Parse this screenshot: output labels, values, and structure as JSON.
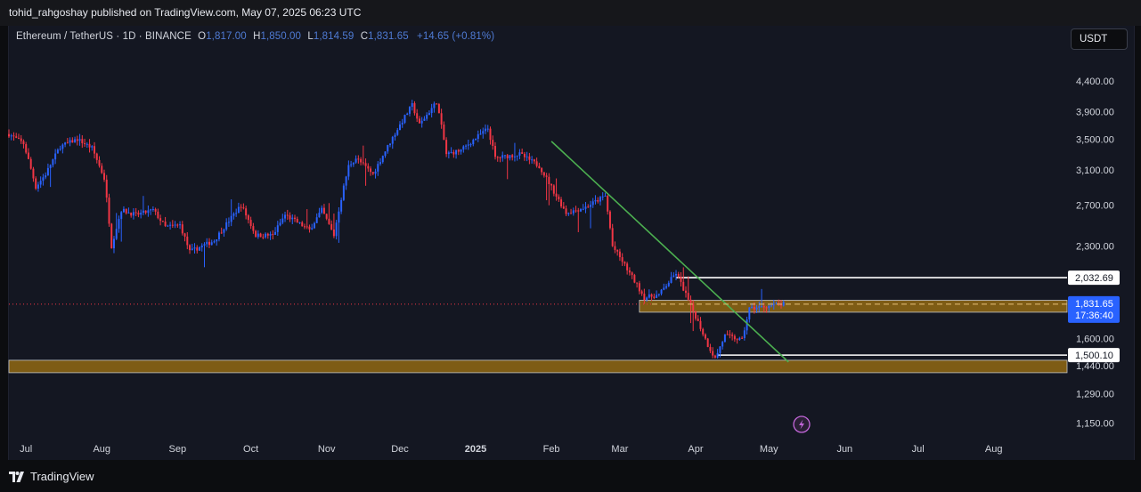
{
  "header": {
    "publisher_text": "tohid_rahgoshay published on TradingView.com, May 07, 2025 06:23 UTC"
  },
  "legend": {
    "symbol": "Ethereum / TetherUS · 1D · BINANCE",
    "open_label": "O",
    "open": "1,817.00",
    "high_label": "H",
    "high": "1,850.00",
    "low_label": "L",
    "low": "1,814.59",
    "close_label": "C",
    "close": "1,831.65",
    "change": "+14.65 (+0.81%)"
  },
  "currency_button": "USDT",
  "footer": {
    "brand": "TradingView"
  },
  "chart_data": {
    "type": "candlestick",
    "symbol": "ETHUSDT",
    "interval": "1D",
    "exchange": "BINANCE",
    "y_axis_scale": "log",
    "y_range": [
      1100,
      4900
    ],
    "y_ticks": [
      {
        "value": 4400,
        "label": "4,400.00"
      },
      {
        "value": 3900,
        "label": "3,900.00"
      },
      {
        "value": 3500,
        "label": "3,500.00"
      },
      {
        "value": 3100,
        "label": "3,100.00"
      },
      {
        "value": 2700,
        "label": "2,700.00"
      },
      {
        "value": 2300,
        "label": "2,300.00"
      },
      {
        "value": 1600,
        "label": "1,600.00"
      },
      {
        "value": 1440,
        "label": "1,440.00"
      },
      {
        "value": 1290,
        "label": "1,290.00"
      },
      {
        "value": 1150,
        "label": "1,150.00"
      }
    ],
    "x_range": [
      "2024-06-24",
      "2025-08-31"
    ],
    "x_ticks": [
      {
        "date": "2024-07-01",
        "label": "Jul"
      },
      {
        "date": "2024-08-01",
        "label": "Aug"
      },
      {
        "date": "2024-09-01",
        "label": "Sep"
      },
      {
        "date": "2024-10-01",
        "label": "Oct"
      },
      {
        "date": "2024-11-01",
        "label": "Nov"
      },
      {
        "date": "2024-12-01",
        "label": "Dec"
      },
      {
        "date": "2025-01-01",
        "label": "2025"
      },
      {
        "date": "2025-02-01",
        "label": "Feb"
      },
      {
        "date": "2025-03-01",
        "label": "Mar"
      },
      {
        "date": "2025-04-01",
        "label": "Apr"
      },
      {
        "date": "2025-05-01",
        "label": "May"
      },
      {
        "date": "2025-06-01",
        "label": "Jun"
      },
      {
        "date": "2025-07-01",
        "label": "Jul"
      },
      {
        "date": "2025-08-01",
        "label": "Aug"
      }
    ],
    "last_price": {
      "value": 1831.65,
      "label": "1,831.65",
      "countdown": "17:36:40"
    },
    "levels": [
      {
        "value": 2032.69,
        "label": "2,032.69",
        "start_date": "2025-03-24"
      },
      {
        "value": 1500.1,
        "label": "1,500.10",
        "start_date": "2025-04-10"
      }
    ],
    "zones": [
      {
        "low": 1775,
        "high": 1860,
        "start_date": "2025-03-09",
        "color": "#8a6414"
      },
      {
        "low": 1400,
        "high": 1470,
        "start_date": "2024-06-24",
        "color": "#8a6414"
      }
    ],
    "trendline": {
      "from": {
        "date": "2025-02-01",
        "value": 3470
      },
      "to": {
        "date": "2025-05-09",
        "value": 1460
      },
      "color": "#4caf50"
    },
    "colors": {
      "up": "#2962ff",
      "down": "#f23645",
      "background": "#141722"
    },
    "swing_path": [
      [
        "2024-06-24",
        3570
      ],
      [
        "2024-06-30",
        3440
      ],
      [
        "2024-07-05",
        2900
      ],
      [
        "2024-07-09",
        3050
      ],
      [
        "2024-07-15",
        3400
      ],
      [
        "2024-07-22",
        3500
      ],
      [
        "2024-07-28",
        3380
      ],
      [
        "2024-08-02",
        3000
      ],
      [
        "2024-08-05",
        2300
      ],
      [
        "2024-08-09",
        2650
      ],
      [
        "2024-08-15",
        2600
      ],
      [
        "2024-08-22",
        2650
      ],
      [
        "2024-08-27",
        2480
      ],
      [
        "2024-09-02",
        2500
      ],
      [
        "2024-09-06",
        2250
      ],
      [
        "2024-09-16",
        2350
      ],
      [
        "2024-09-27",
        2700
      ],
      [
        "2024-10-03",
        2400
      ],
      [
        "2024-10-10",
        2400
      ],
      [
        "2024-10-15",
        2600
      ],
      [
        "2024-10-25",
        2450
      ],
      [
        "2024-10-30",
        2650
      ],
      [
        "2024-11-04",
        2400
      ],
      [
        "2024-11-10",
        3150
      ],
      [
        "2024-11-13",
        3250
      ],
      [
        "2024-11-20",
        3050
      ],
      [
        "2024-11-26",
        3400
      ],
      [
        "2024-12-01",
        3700
      ],
      [
        "2024-12-06",
        4000
      ],
      [
        "2024-12-09",
        3700
      ],
      [
        "2024-12-16",
        4050
      ],
      [
        "2024-12-20",
        3300
      ],
      [
        "2024-12-26",
        3350
      ],
      [
        "2025-01-06",
        3650
      ],
      [
        "2025-01-09",
        3250
      ],
      [
        "2025-01-19",
        3300
      ],
      [
        "2025-01-27",
        3150
      ],
      [
        "2025-02-03",
        2800
      ],
      [
        "2025-02-07",
        2620
      ],
      [
        "2025-02-15",
        2680
      ],
      [
        "2025-02-23",
        2800
      ],
      [
        "2025-02-26",
        2300
      ],
      [
        "2025-03-04",
        2100
      ],
      [
        "2025-03-11",
        1880
      ],
      [
        "2025-03-17",
        1900
      ],
      [
        "2025-03-24",
        2070
      ],
      [
        "2025-03-30",
        1820
      ],
      [
        "2025-04-06",
        1560
      ],
      [
        "2025-04-09",
        1480
      ],
      [
        "2025-04-13",
        1620
      ],
      [
        "2025-04-20",
        1590
      ],
      [
        "2025-04-23",
        1800
      ],
      [
        "2025-05-01",
        1820
      ],
      [
        "2025-05-07",
        1831
      ]
    ]
  }
}
